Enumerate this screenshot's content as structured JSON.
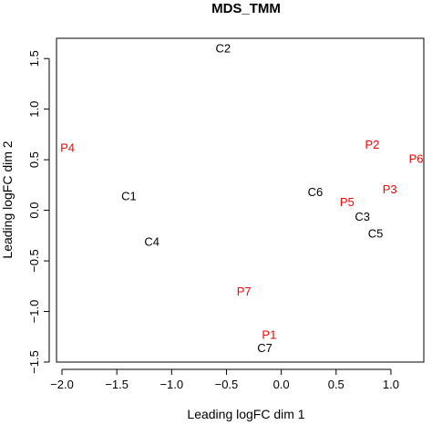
{
  "chart_data": {
    "type": "scatter",
    "title": "MDS_TMM",
    "xlabel": "Leading logFC dim 1",
    "ylabel": "Leading logFC dim 2",
    "xlim": [
      -2.05,
      1.3
    ],
    "ylim": [
      -1.5,
      1.7
    ],
    "xticks": [
      -2.0,
      -1.5,
      -1.0,
      -0.5,
      0.0,
      0.5,
      1.0
    ],
    "xtick_labels": [
      "−2.0",
      "−1.5",
      "−1.0",
      "−0.5",
      "0.0",
      "0.5",
      "1.0"
    ],
    "yticks": [
      -1.5,
      -1.0,
      -0.5,
      0.0,
      0.5,
      1.0,
      1.5
    ],
    "ytick_labels": [
      "−1.5",
      "−1.0",
      "−0.5",
      "0.0",
      "0.5",
      "1.0",
      "1.5"
    ],
    "grid": false,
    "legend": "none",
    "colors": {
      "control": "#000000",
      "patient": "#ff0000"
    },
    "points": [
      {
        "label": "C2",
        "x": -0.53,
        "y": 1.6,
        "group": "control"
      },
      {
        "label": "P4",
        "x": -1.95,
        "y": 0.62,
        "group": "patient"
      },
      {
        "label": "P2",
        "x": 0.83,
        "y": 0.65,
        "group": "patient"
      },
      {
        "label": "P6",
        "x": 1.23,
        "y": 0.51,
        "group": "patient"
      },
      {
        "label": "C1",
        "x": -1.39,
        "y": 0.14,
        "group": "control"
      },
      {
        "label": "C6",
        "x": 0.31,
        "y": 0.18,
        "group": "control"
      },
      {
        "label": "P5",
        "x": 0.6,
        "y": 0.08,
        "group": "patient"
      },
      {
        "label": "P3",
        "x": 0.99,
        "y": 0.21,
        "group": "patient"
      },
      {
        "label": "C3",
        "x": 0.74,
        "y": -0.06,
        "group": "control"
      },
      {
        "label": "C5",
        "x": 0.86,
        "y": -0.23,
        "group": "control"
      },
      {
        "label": "C4",
        "x": -1.18,
        "y": -0.31,
        "group": "control"
      },
      {
        "label": "P7",
        "x": -0.34,
        "y": -0.8,
        "group": "patient"
      },
      {
        "label": "P1",
        "x": -0.11,
        "y": -1.23,
        "group": "patient"
      },
      {
        "label": "C7",
        "x": -0.15,
        "y": -1.36,
        "group": "control"
      }
    ]
  }
}
